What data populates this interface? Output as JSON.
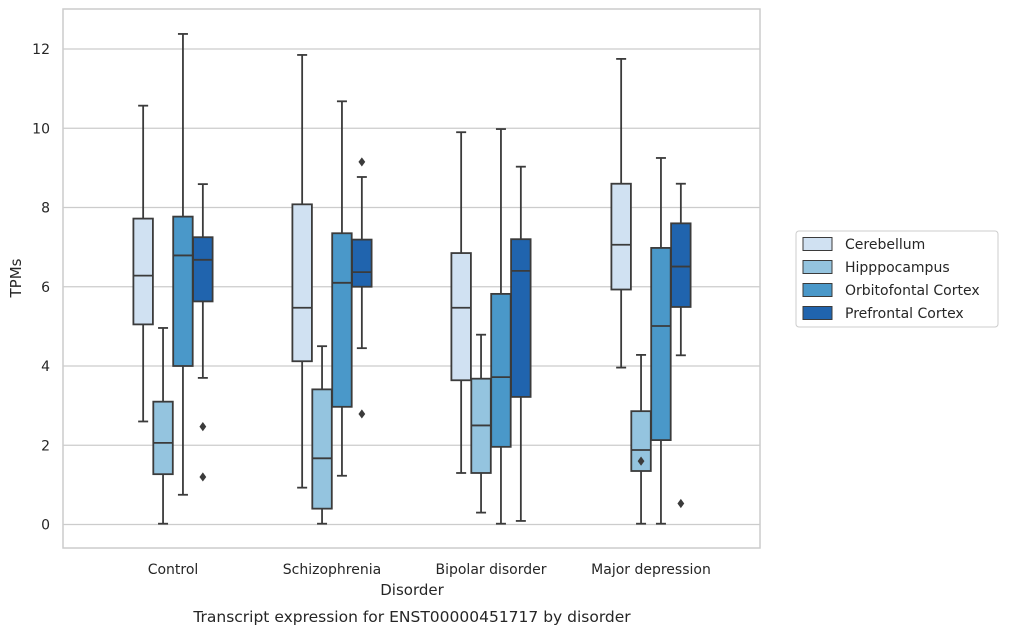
{
  "chart_data": {
    "type": "boxplot",
    "caption": "Transcript expression for ENST00000451717 by disorder",
    "xlabel": "Disorder",
    "ylabel": "TPMs",
    "ylim": [
      -0.6,
      13
    ],
    "yticks": [
      0,
      2,
      4,
      6,
      8,
      10,
      12
    ],
    "grid": true,
    "legend_position": "right",
    "categories": [
      "Control",
      "Schizophrenia",
      "Bipolar disorder",
      "Major depression"
    ],
    "series": [
      {
        "name": "Cerebellum",
        "color": "#d0e1f2",
        "boxes": [
          {
            "whislo": 2.6,
            "q1": 5.05,
            "med": 6.28,
            "q3": 7.72,
            "whishi": 10.57,
            "fliers": []
          },
          {
            "whislo": 0.93,
            "q1": 4.12,
            "med": 5.47,
            "q3": 8.08,
            "whishi": 11.85,
            "fliers": []
          },
          {
            "whislo": 1.3,
            "q1": 3.64,
            "med": 5.47,
            "q3": 6.85,
            "whishi": 9.9,
            "fliers": []
          },
          {
            "whislo": 3.96,
            "q1": 5.93,
            "med": 7.06,
            "q3": 8.6,
            "whishi": 11.75,
            "fliers": []
          }
        ]
      },
      {
        "name": "Hipppocampus",
        "color": "#94c4df",
        "boxes": [
          {
            "whislo": 0.02,
            "q1": 1.27,
            "med": 2.06,
            "q3": 3.1,
            "whishi": 4.96,
            "fliers": []
          },
          {
            "whislo": 0.02,
            "q1": 0.4,
            "med": 1.67,
            "q3": 3.41,
            "whishi": 4.5,
            "fliers": []
          },
          {
            "whislo": 0.3,
            "q1": 1.3,
            "med": 2.5,
            "q3": 3.68,
            "whishi": 4.79,
            "fliers": []
          },
          {
            "whislo": 0.02,
            "q1": 1.35,
            "med": 1.88,
            "q3": 2.86,
            "whishi": 4.28,
            "fliers": [
              1.6
            ]
          }
        ]
      },
      {
        "name": "Orbitofontal Cortex",
        "color": "#4a98c9",
        "boxes": [
          {
            "whislo": 0.75,
            "q1": 4.0,
            "med": 6.79,
            "q3": 7.77,
            "whishi": 12.38,
            "fliers": []
          },
          {
            "whislo": 1.23,
            "q1": 2.97,
            "med": 6.1,
            "q3": 7.35,
            "whishi": 10.68,
            "fliers": []
          },
          {
            "whislo": 0.02,
            "q1": 1.96,
            "med": 3.72,
            "q3": 5.82,
            "whishi": 9.98,
            "fliers": []
          },
          {
            "whislo": 0.02,
            "q1": 2.13,
            "med": 5.01,
            "q3": 6.98,
            "whishi": 9.25,
            "fliers": []
          }
        ]
      },
      {
        "name": "Prefrontal Cortex",
        "color": "#2064ae",
        "boxes": [
          {
            "whislo": 3.7,
            "q1": 5.63,
            "med": 6.68,
            "q3": 7.25,
            "whishi": 8.59,
            "fliers": [
              2.47,
              1.2
            ]
          },
          {
            "whislo": 4.45,
            "q1": 6.0,
            "med": 6.37,
            "q3": 7.19,
            "whishi": 8.77,
            "fliers": [
              9.15,
              2.79
            ]
          },
          {
            "whislo": 0.09,
            "q1": 3.22,
            "med": 6.4,
            "q3": 7.2,
            "whishi": 9.03,
            "fliers": []
          },
          {
            "whislo": 4.27,
            "q1": 5.49,
            "med": 6.51,
            "q3": 7.6,
            "whishi": 8.6,
            "fliers": [
              0.53
            ]
          }
        ]
      }
    ]
  }
}
